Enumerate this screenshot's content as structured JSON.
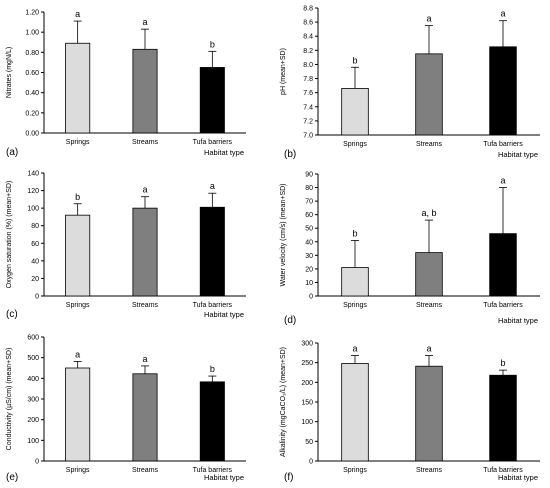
{
  "chart_data": [
    {
      "type": "bar",
      "panel_label": "(a)",
      "categories": [
        "Springs",
        "Streams",
        "Tufa barriers"
      ],
      "values": [
        0.89,
        0.83,
        0.65
      ],
      "errors": [
        0.22,
        0.2,
        0.16
      ],
      "significance": [
        "a",
        "a",
        "b"
      ],
      "xlabel": "Habitat type",
      "ylabel": "Nitrates (mgN/L)",
      "ylim": [
        0,
        1.2
      ],
      "yticks": [
        "0.00",
        "0.20",
        "0.40",
        "0.60",
        "0.80",
        "1.00",
        "1.20"
      ],
      "colors": [
        "#dcdcdc",
        "#7f7f7f",
        "#000000"
      ]
    },
    {
      "type": "bar",
      "panel_label": "(b)",
      "categories": [
        "Springs",
        "Streams",
        "Tufa barriers"
      ],
      "values": [
        7.66,
        8.15,
        8.25
      ],
      "errors": [
        0.3,
        0.4,
        0.37
      ],
      "significance": [
        "b",
        "a",
        "a"
      ],
      "xlabel": "Habitat type",
      "ylabel": "pH (mean+SD)",
      "ylim": [
        7.0,
        8.8
      ],
      "yticks": [
        "7.0",
        "7.2",
        "7.4",
        "7.6",
        "7.8",
        "8.0",
        "8.2",
        "8.4",
        "8.6",
        "8.8"
      ],
      "colors": [
        "#dcdcdc",
        "#7f7f7f",
        "#000000"
      ]
    },
    {
      "type": "bar",
      "panel_label": "(c)",
      "categories": [
        "Springs",
        "Streams",
        "Tufa barriers"
      ],
      "values": [
        92,
        100,
        101
      ],
      "errors": [
        13,
        13,
        16
      ],
      "significance": [
        "b",
        "a",
        "a"
      ],
      "xlabel": "Habitat type",
      "ylabel": "Oxygen saturation (%) (mean+SD)",
      "ylim": [
        0,
        140
      ],
      "yticks": [
        "0",
        "20",
        "40",
        "60",
        "80",
        "100",
        "120",
        "140"
      ],
      "colors": [
        "#dcdcdc",
        "#7f7f7f",
        "#000000"
      ]
    },
    {
      "type": "bar",
      "panel_label": "(d)",
      "categories": [
        "Springs",
        "Streams",
        "Tufa barriers"
      ],
      "values": [
        21,
        32,
        46
      ],
      "errors": [
        20,
        24,
        34
      ],
      "significance": [
        "b",
        "a, b",
        "a"
      ],
      "xlabel": "Habitat type",
      "ylabel": "Water velocity (cm/s) (mean+SD)",
      "ylim": [
        0,
        90
      ],
      "yticks": [
        "0",
        "10",
        "20",
        "30",
        "40",
        "50",
        "60",
        "70",
        "80",
        "90"
      ],
      "colors": [
        "#dcdcdc",
        "#7f7f7f",
        "#000000"
      ]
    },
    {
      "type": "bar",
      "panel_label": "(e)",
      "categories": [
        "Springs",
        "Streams",
        "Tufa barriers"
      ],
      "values": [
        450,
        422,
        383
      ],
      "errors": [
        32,
        38,
        28
      ],
      "significance": [
        "a",
        "a",
        "b"
      ],
      "xlabel": "Habitat type",
      "ylabel": "Conductivity (µS/cm) (mean+SD)",
      "ylim": [
        0,
        600
      ],
      "yticks": [
        "0",
        "100",
        "200",
        "300",
        "400",
        "500",
        "600"
      ],
      "colors": [
        "#dcdcdc",
        "#7f7f7f",
        "#000000"
      ]
    },
    {
      "type": "bar",
      "panel_label": "(f)",
      "categories": [
        "Springs",
        "Streams",
        "Tufa barriers"
      ],
      "values": [
        248,
        241,
        218
      ],
      "errors": [
        20,
        27,
        13
      ],
      "significance": [
        "a",
        "a",
        "b"
      ],
      "xlabel": "Habitat type",
      "ylabel": "Alkalinity (mgCaCO₃/L) (mean+SD)",
      "ylim": [
        0,
        300
      ],
      "yticks": [
        "0",
        "50",
        "100",
        "150",
        "200",
        "250",
        "300"
      ],
      "colors": [
        "#dcdcdc",
        "#7f7f7f",
        "#000000"
      ]
    }
  ]
}
